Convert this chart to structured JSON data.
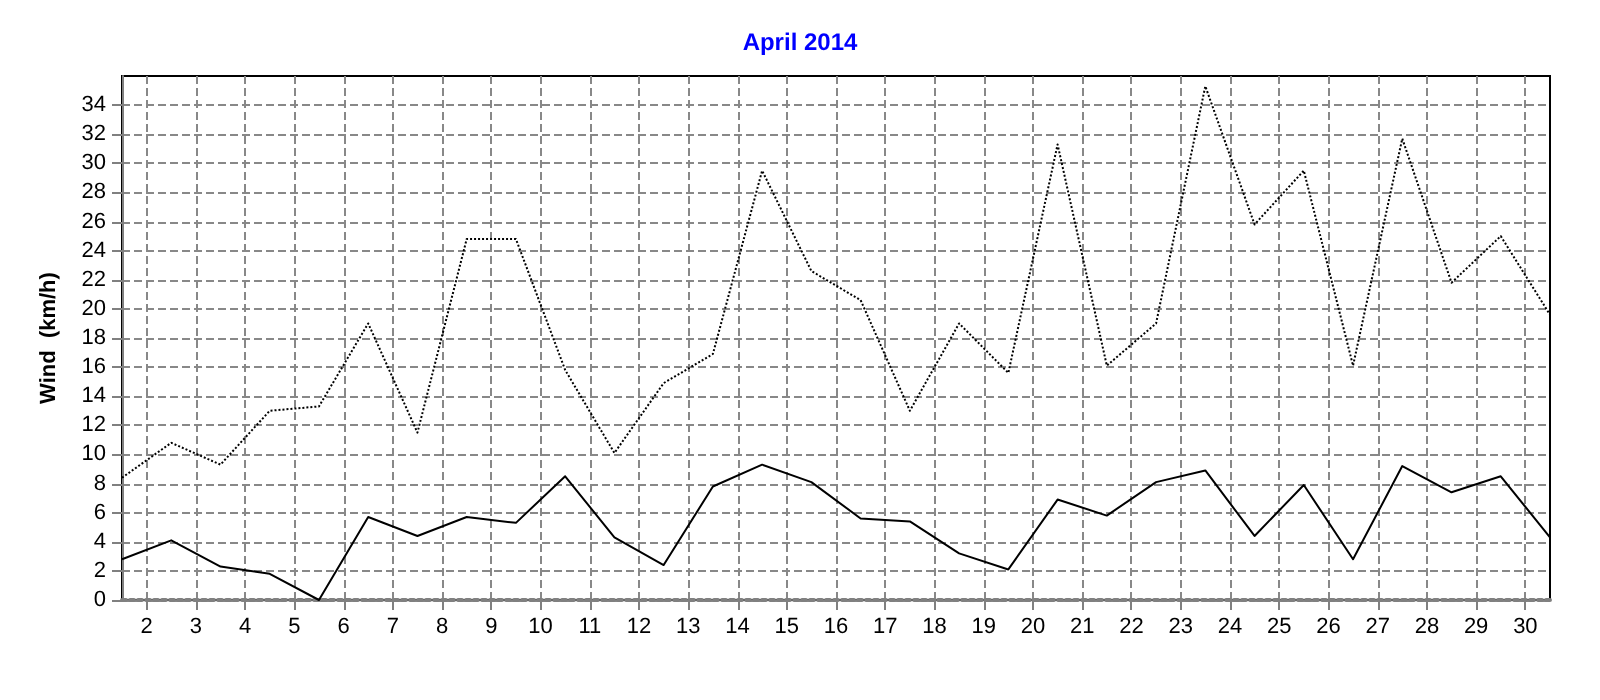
{
  "chart_data": {
    "type": "line",
    "title": "April 2014",
    "ylabel": "Wind  (km/h)",
    "x": [
      1.5,
      2.5,
      3.5,
      4.5,
      5.5,
      6.5,
      7.5,
      8.5,
      9.5,
      10.5,
      11.5,
      12.5,
      13.5,
      14.5,
      15.5,
      16.5,
      17.5,
      18.5,
      19.5,
      20.5,
      21.5,
      22.5,
      23.5,
      24.5,
      25.5,
      26.5,
      27.5,
      28.5,
      29.5,
      30.5
    ],
    "series": [
      {
        "color": "#000000",
        "line_style": "dotted",
        "values": [
          8.4,
          10.8,
          9.3,
          13.0,
          13.3,
          19.0,
          11.5,
          24.8,
          24.8,
          15.8,
          10.1,
          14.9,
          16.9,
          29.5,
          22.6,
          20.6,
          13.0,
          19.0,
          15.6,
          31.3,
          16.1,
          19.0,
          35.3,
          25.8,
          29.5,
          16.1,
          31.7,
          21.8,
          25.0,
          19.6
        ]
      },
      {
        "color": "#000000",
        "line_style": "solid",
        "values": [
          2.8,
          4.1,
          2.3,
          1.8,
          0,
          5.7,
          4.4,
          5.7,
          5.3,
          8.5,
          4.3,
          2.4,
          7.8,
          9.3,
          8.1,
          5.6,
          5.4,
          3.2,
          2.1,
          6.9,
          5.8,
          8.1,
          8.9,
          4.4,
          7.9,
          2.8,
          9.2,
          7.4,
          8.5,
          4.3
        ]
      }
    ],
    "xlim": [
      1.5,
      30.5
    ],
    "xticks": [
      2,
      3,
      4,
      5,
      6,
      7,
      8,
      9,
      10,
      11,
      12,
      13,
      14,
      15,
      16,
      17,
      18,
      19,
      20,
      21,
      22,
      23,
      24,
      25,
      26,
      27,
      28,
      29,
      30
    ],
    "ylim": [
      0,
      36
    ],
    "yticks": [
      0,
      2,
      4,
      6,
      8,
      10,
      12,
      14,
      16,
      18,
      20,
      22,
      24,
      26,
      28,
      30,
      32,
      34
    ],
    "grid": true,
    "marker": "none"
  }
}
